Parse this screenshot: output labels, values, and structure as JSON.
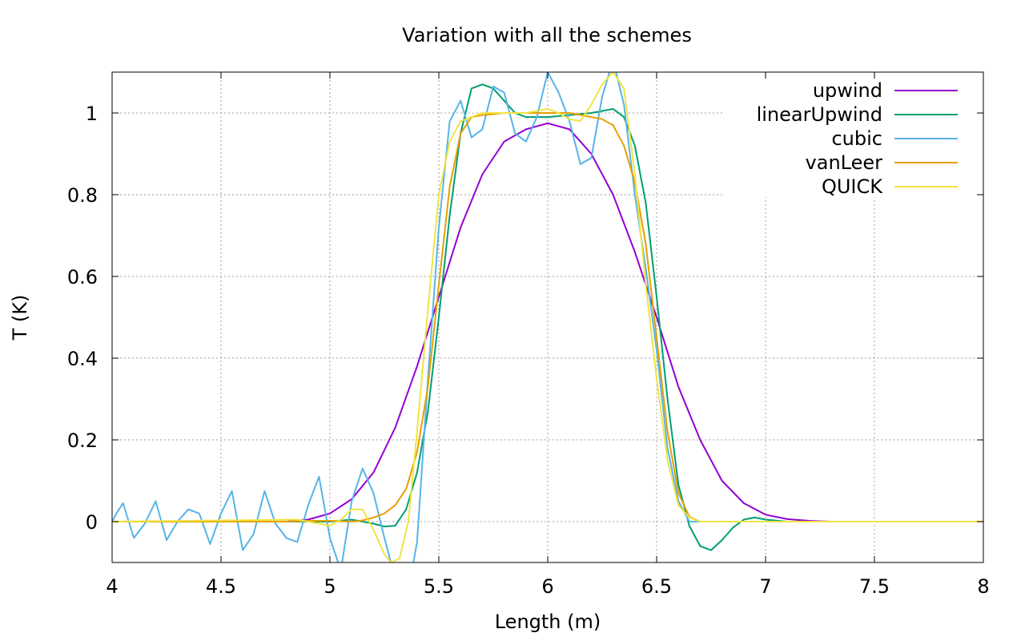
{
  "chart_data": {
    "type": "line",
    "title": "Variation with all the schemes",
    "xlabel": "Length (m)",
    "ylabel": "T (K)",
    "xlim": [
      4,
      8
    ],
    "ylim": [
      -0.1,
      1.1
    ],
    "xticks": [
      4,
      4.5,
      5,
      5.5,
      6,
      6.5,
      7,
      7.5,
      8
    ],
    "xtick_labels": [
      "4",
      "4.5",
      "5",
      "5.5",
      "6",
      "6.5",
      "7",
      "7.5",
      "8"
    ],
    "yticks": [
      0,
      0.2,
      0.4,
      0.6,
      0.8,
      1
    ],
    "ytick_labels": [
      "0",
      "0.2",
      "0.4",
      "0.6",
      "0.8",
      "1"
    ],
    "grid": true,
    "legend": "top-right",
    "series": [
      {
        "name": "upwind",
        "color": "#9400d3",
        "x": [
          4,
          4.8,
          4.9,
          5.0,
          5.1,
          5.2,
          5.3,
          5.4,
          5.5,
          5.6,
          5.7,
          5.8,
          5.9,
          6.0,
          6.1,
          6.2,
          6.3,
          6.4,
          6.5,
          6.6,
          6.7,
          6.8,
          6.9,
          7.0,
          7.1,
          7.2,
          7.3
        ],
        "y": [
          0,
          0,
          0.005,
          0.02,
          0.055,
          0.12,
          0.23,
          0.38,
          0.55,
          0.72,
          0.85,
          0.93,
          0.96,
          0.975,
          0.96,
          0.9,
          0.8,
          0.66,
          0.5,
          0.33,
          0.2,
          0.1,
          0.045,
          0.017,
          0.006,
          0.002,
          0
        ]
      },
      {
        "name": "linearUpwind",
        "color": "#009e73",
        "x": [
          4,
          5.0,
          5.1,
          5.2,
          5.25,
          5.3,
          5.35,
          5.4,
          5.45,
          5.5,
          5.55,
          5.6,
          5.65,
          5.7,
          5.75,
          5.8,
          5.85,
          5.9,
          6.0,
          6.1,
          6.2,
          6.25,
          6.3,
          6.35,
          6.4,
          6.45,
          6.5,
          6.55,
          6.6,
          6.65,
          6.7,
          6.75,
          6.8,
          6.85,
          6.9,
          6.95,
          7.0,
          7.1,
          8
        ],
        "y": [
          0,
          0,
          0.005,
          -0.005,
          -0.012,
          -0.01,
          0.03,
          0.12,
          0.27,
          0.5,
          0.75,
          0.95,
          1.06,
          1.07,
          1.06,
          1.03,
          1.0,
          0.99,
          0.99,
          0.995,
          1.0,
          1.005,
          1.01,
          0.99,
          0.92,
          0.78,
          0.55,
          0.3,
          0.09,
          -0.01,
          -0.06,
          -0.07,
          -0.045,
          -0.015,
          0.005,
          0.01,
          0.005,
          0,
          0
        ]
      },
      {
        "name": "cubic",
        "color": "#56b4e9",
        "x": [
          4,
          4.02,
          4.05,
          4.1,
          4.15,
          4.2,
          4.25,
          4.3,
          4.35,
          4.4,
          4.45,
          4.5,
          4.55,
          4.6,
          4.65,
          4.7,
          4.75,
          4.8,
          4.85,
          4.9,
          4.95,
          5.0,
          5.05,
          5.1,
          5.15,
          5.2,
          5.25,
          5.3,
          5.35,
          5.4,
          5.45,
          5.5,
          5.55,
          5.6,
          5.65,
          5.7,
          5.75,
          5.8,
          5.85,
          5.9,
          5.95,
          6.0,
          6.05,
          6.1,
          6.15,
          6.2,
          6.25,
          6.3,
          6.35,
          6.4,
          6.45,
          6.5,
          6.55,
          6.6,
          6.65,
          6.7,
          8
        ],
        "y": [
          0,
          0.02,
          0.045,
          -0.04,
          -0.005,
          0.05,
          -0.045,
          0.0,
          0.03,
          0.02,
          -0.055,
          0.02,
          0.075,
          -0.07,
          -0.03,
          0.075,
          -0.005,
          -0.04,
          -0.05,
          0.04,
          0.11,
          -0.04,
          -0.12,
          0.05,
          0.13,
          0.07,
          -0.04,
          -0.14,
          -0.2,
          -0.05,
          0.35,
          0.72,
          0.98,
          1.03,
          0.94,
          0.96,
          1.065,
          1.05,
          0.95,
          0.93,
          0.99,
          1.1,
          1.05,
          0.98,
          0.875,
          0.89,
          1.04,
          1.13,
          1.02,
          0.8,
          0.62,
          0.42,
          0.18,
          0.05,
          0.0,
          0.0,
          0
        ]
      },
      {
        "name": "vanLeer",
        "color": "#e69f00",
        "x": [
          4,
          4.8,
          4.9,
          5.0,
          5.1,
          5.15,
          5.2,
          5.25,
          5.3,
          5.35,
          5.4,
          5.45,
          5.5,
          5.55,
          5.6,
          5.65,
          5.7,
          5.8,
          5.9,
          6.0,
          6.1,
          6.2,
          6.25,
          6.3,
          6.35,
          6.4,
          6.45,
          6.5,
          6.55,
          6.6,
          6.65,
          6.7,
          8
        ],
        "y": [
          0,
          0,
          0.002,
          0.002,
          0.0,
          0.003,
          0.01,
          0.02,
          0.04,
          0.08,
          0.17,
          0.33,
          0.58,
          0.82,
          0.95,
          0.99,
          0.995,
          1.0,
          1.0,
          1.0,
          1.0,
          0.99,
          0.985,
          0.97,
          0.92,
          0.83,
          0.68,
          0.45,
          0.22,
          0.07,
          0.012,
          0.0,
          0
        ]
      },
      {
        "name": "QUICK",
        "color": "#f0e442",
        "x": [
          4,
          4.85,
          4.95,
          5.0,
          5.05,
          5.1,
          5.15,
          5.2,
          5.25,
          5.28,
          5.32,
          5.36,
          5.4,
          5.45,
          5.5,
          5.55,
          5.6,
          5.65,
          5.7,
          5.8,
          5.9,
          6.0,
          6.05,
          6.1,
          6.15,
          6.2,
          6.25,
          6.3,
          6.35,
          6.4,
          6.45,
          6.5,
          6.55,
          6.6,
          6.65,
          6.7,
          8
        ],
        "y": [
          0,
          0.005,
          -0.005,
          -0.01,
          0.005,
          0.03,
          0.03,
          -0.02,
          -0.08,
          -0.1,
          -0.09,
          0.0,
          0.22,
          0.52,
          0.8,
          0.93,
          0.98,
          0.99,
          1.0,
          1.0,
          1.0,
          1.01,
          1.0,
          0.985,
          0.98,
          1.02,
          1.07,
          1.1,
          1.06,
          0.85,
          0.58,
          0.35,
          0.15,
          0.04,
          0.01,
          0.0,
          0
        ]
      }
    ]
  }
}
